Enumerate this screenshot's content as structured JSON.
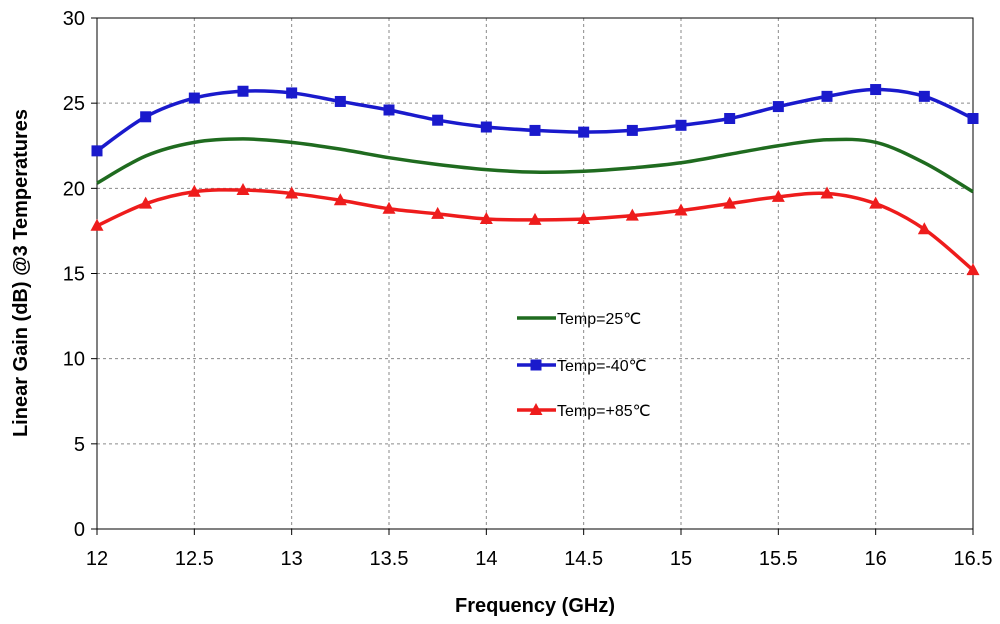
{
  "chart_data": {
    "type": "line",
    "xlabel": "Frequency (GHz)",
    "ylabel": "Linear Gain (dB) @3 Temperatures",
    "xlim": [
      12,
      16.5
    ],
    "ylim": [
      0,
      30
    ],
    "x_ticks": [
      "12",
      "12.5",
      "13",
      "13.5",
      "14",
      "14.5",
      "15",
      "15.5",
      "16",
      "16.5"
    ],
    "y_ticks": [
      "0",
      "5",
      "10",
      "15",
      "20",
      "25",
      "30"
    ],
    "grid": true,
    "legend_position": "center",
    "series": [
      {
        "name": "Temp=25℃",
        "color": "#1f6b1f",
        "marker": "none",
        "x": [
          12,
          12.25,
          12.5,
          12.75,
          13,
          13.25,
          13.5,
          13.75,
          14,
          14.25,
          14.5,
          14.75,
          15,
          15.25,
          15.5,
          15.75,
          16,
          16.25,
          16.5
        ],
        "values": [
          20.3,
          21.9,
          22.7,
          22.9,
          22.7,
          22.3,
          21.8,
          21.4,
          21.1,
          20.95,
          21.0,
          21.2,
          21.5,
          22.0,
          22.5,
          22.85,
          22.7,
          21.5,
          19.8
        ]
      },
      {
        "name": "Temp=-40℃",
        "color": "#1a1acc",
        "marker": "square",
        "x": [
          12,
          12.25,
          12.5,
          12.75,
          13,
          13.25,
          13.5,
          13.75,
          14,
          14.25,
          14.5,
          14.75,
          15,
          15.25,
          15.5,
          15.75,
          16,
          16.25,
          16.5
        ],
        "values": [
          22.2,
          24.2,
          25.3,
          25.7,
          25.6,
          25.1,
          24.6,
          24.0,
          23.6,
          23.4,
          23.3,
          23.4,
          23.7,
          24.1,
          24.8,
          25.4,
          25.8,
          25.4,
          24.1
        ]
      },
      {
        "name": "Temp=+85℃",
        "color": "#ee1c1c",
        "marker": "triangle",
        "x": [
          12,
          12.25,
          12.5,
          12.75,
          13,
          13.25,
          13.5,
          13.75,
          14,
          14.25,
          14.5,
          14.75,
          15,
          15.25,
          15.5,
          15.75,
          16,
          16.25,
          16.5
        ],
        "values": [
          17.8,
          19.1,
          19.8,
          19.9,
          19.7,
          19.3,
          18.8,
          18.5,
          18.2,
          18.15,
          18.2,
          18.4,
          18.7,
          19.1,
          19.5,
          19.7,
          19.1,
          17.6,
          15.2
        ]
      }
    ]
  }
}
